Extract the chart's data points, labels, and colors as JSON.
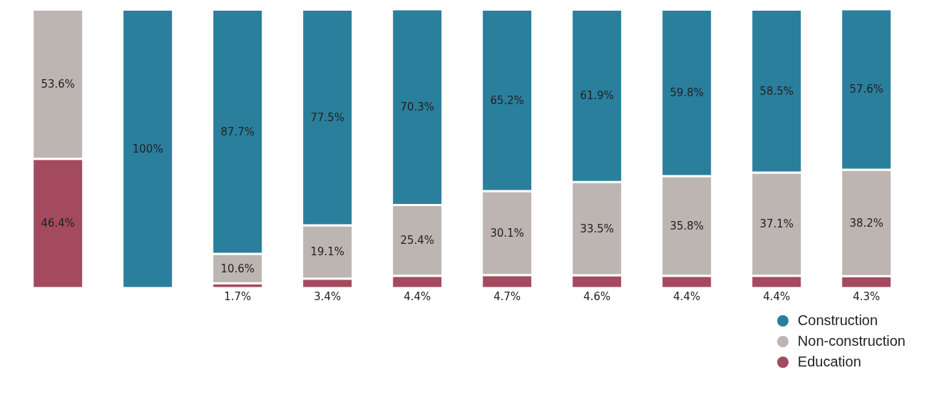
{
  "chart_data": {
    "type": "bar",
    "stacked": true,
    "categories": [
      null,
      null,
      null,
      null,
      null,
      null,
      null,
      null,
      null,
      null
    ],
    "series": [
      {
        "name": "Education",
        "color": "#a34a5f",
        "values": [
          46.4,
          null,
          1.7,
          3.4,
          4.4,
          4.7,
          4.6,
          4.4,
          4.4,
          4.3
        ],
        "value_labels": [
          "46.4%",
          null,
          "1.7%",
          "3.4%",
          "4.4%",
          "4.7%",
          "4.6%",
          "4.4%",
          "4.4%",
          "4.3%"
        ]
      },
      {
        "name": "Non-construction",
        "color": "#bdb5b2",
        "values": [
          53.6,
          null,
          10.6,
          19.1,
          25.4,
          30.1,
          33.5,
          35.8,
          37.1,
          38.2
        ],
        "value_labels": [
          "53.6%",
          null,
          "10.6%",
          "19.1%",
          "25.4%",
          "30.1%",
          "33.5%",
          "35.8%",
          "37.1%",
          "38.2%"
        ]
      },
      {
        "name": "Construction",
        "color": "#2a7f9c",
        "values": [
          null,
          100,
          87.7,
          77.5,
          70.3,
          65.2,
          61.9,
          59.8,
          58.5,
          57.6
        ],
        "value_labels": [
          null,
          "100%",
          "87.7%",
          "77.5%",
          "70.3%",
          "65.2%",
          "61.9%",
          "59.8%",
          "58.5%",
          "57.6%"
        ]
      }
    ],
    "data_labels": true,
    "legend": "bottom right",
    "tick_labels": false
  }
}
